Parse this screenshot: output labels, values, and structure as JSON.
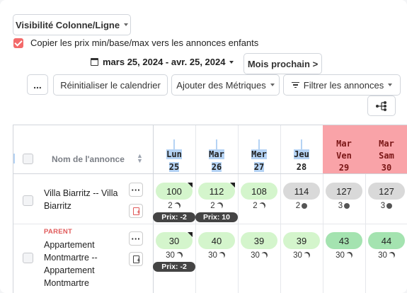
{
  "toolbar": {
    "visibility_label": "Visibilité Colonne/Ligne",
    "copy_prices_label": "Copier les prix min/base/max vers les annonces enfants",
    "date_range": "mars 25, 2024 - avr. 25, 2024",
    "next_month_label": "Mois prochain >",
    "more_label": "...",
    "reset_calendar_label": "Réinitialiser le calendrier",
    "add_metrics_label": "Ajouter des Métriques",
    "filter_listings_label": "Filtrer les annonces"
  },
  "table": {
    "name_header": "Nom de l'annonce",
    "days": [
      {
        "dow": "Lun",
        "date": "25",
        "weekend": false,
        "highlighted": true
      },
      {
        "dow": "Mar",
        "date": "26",
        "weekend": false,
        "highlighted": true
      },
      {
        "dow": "Mer",
        "date": "27",
        "weekend": false,
        "highlighted": true
      },
      {
        "dow": "Jeu",
        "date": "28",
        "weekend": false,
        "highlighted": true
      },
      {
        "dow": "Mar",
        "dow2": "Ven",
        "date": "29",
        "weekend": true
      },
      {
        "dow": "Mar",
        "dow2": "Sam",
        "date": "30",
        "weekend": true
      }
    ],
    "rows": [
      {
        "tag": "",
        "name": "Villa Biarritz -- Villa Biarritz",
        "cells": [
          {
            "price": "100",
            "color": "green",
            "flag": true,
            "stay": "2",
            "icon": "moon-icon",
            "badge": "Prix: -2"
          },
          {
            "price": "112",
            "color": "green",
            "flag": true,
            "stay": "2",
            "icon": "moon-icon",
            "badge": "Prix: 10"
          },
          {
            "price": "108",
            "color": "green",
            "flag": false,
            "stay": "2",
            "icon": "moon-icon",
            "badge": ""
          },
          {
            "price": "114",
            "color": "grey",
            "flag": false,
            "stay": "2",
            "icon": "dot-icon",
            "badge": ""
          },
          {
            "price": "127",
            "color": "grey",
            "flag": false,
            "stay": "3",
            "icon": "dot-icon",
            "badge": ""
          },
          {
            "price": "127",
            "color": "grey",
            "flag": false,
            "stay": "3",
            "icon": "dot-icon",
            "badge": ""
          }
        ]
      },
      {
        "tag": "PARENT",
        "name": "Appartement Montmartre -- Appartement Montmartre",
        "cells": [
          {
            "price": "30",
            "color": "green",
            "flag": true,
            "stay": "30",
            "icon": "moon-icon",
            "badge": "Prix: -2"
          },
          {
            "price": "40",
            "color": "green",
            "flag": false,
            "stay": "30",
            "icon": "moon-icon",
            "badge": ""
          },
          {
            "price": "39",
            "color": "green",
            "flag": false,
            "stay": "30",
            "icon": "moon-icon",
            "badge": ""
          },
          {
            "price": "39",
            "color": "green",
            "flag": false,
            "stay": "30",
            "icon": "moon-icon",
            "badge": ""
          },
          {
            "price": "43",
            "color": "dgreen",
            "flag": false,
            "stay": "30",
            "icon": "moon-icon",
            "badge": ""
          },
          {
            "price": "44",
            "color": "dgreen",
            "flag": false,
            "stay": "30",
            "icon": "moon-icon",
            "badge": ""
          }
        ]
      }
    ]
  }
}
